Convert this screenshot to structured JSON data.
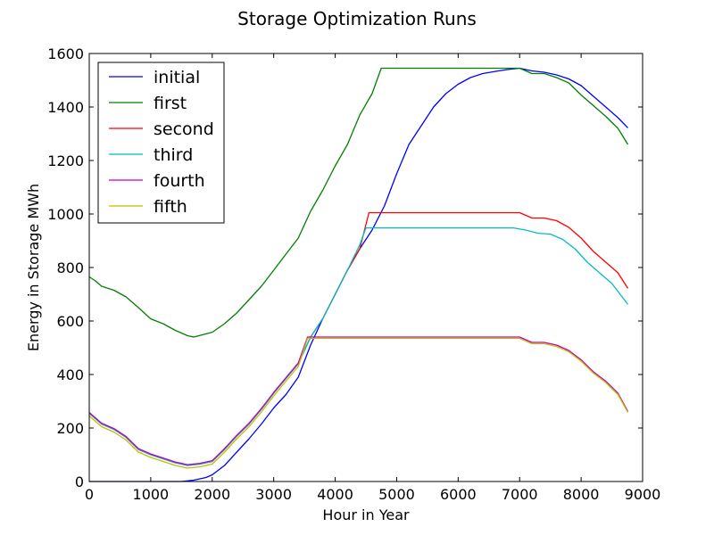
{
  "chart_data": {
    "type": "line",
    "title": "Storage Optimization Runs",
    "xlabel": "Hour in Year",
    "ylabel": "Energy in Storage MWh",
    "xlim": [
      0,
      9000
    ],
    "ylim": [
      0,
      1600
    ],
    "xticks": [
      0,
      1000,
      2000,
      3000,
      4000,
      5000,
      6000,
      7000,
      8000,
      9000
    ],
    "yticks": [
      0,
      200,
      400,
      600,
      800,
      1000,
      1200,
      1400,
      1600
    ],
    "grid": false,
    "legend_position": "upper-left",
    "series": [
      {
        "name": "initial",
        "color": "#0000ff",
        "points": [
          [
            0,
            0
          ],
          [
            800,
            0
          ],
          [
            1200,
            0
          ],
          [
            1500,
            0
          ],
          [
            1700,
            5
          ],
          [
            1900,
            15
          ],
          [
            2000,
            25
          ],
          [
            2200,
            60
          ],
          [
            2400,
            110
          ],
          [
            2600,
            160
          ],
          [
            2800,
            215
          ],
          [
            3000,
            275
          ],
          [
            3200,
            325
          ],
          [
            3400,
            390
          ],
          [
            3600,
            510
          ],
          [
            3800,
            610
          ],
          [
            4000,
            700
          ],
          [
            4200,
            790
          ],
          [
            4400,
            870
          ],
          [
            4600,
            940
          ],
          [
            4800,
            1030
          ],
          [
            5000,
            1150
          ],
          [
            5200,
            1260
          ],
          [
            5400,
            1330
          ],
          [
            5600,
            1400
          ],
          [
            5800,
            1450
          ],
          [
            6000,
            1485
          ],
          [
            6200,
            1510
          ],
          [
            6400,
            1525
          ],
          [
            6600,
            1533
          ],
          [
            6800,
            1540
          ],
          [
            7000,
            1545
          ],
          [
            7200,
            1535
          ],
          [
            7400,
            1530
          ],
          [
            7600,
            1520
          ],
          [
            7800,
            1505
          ],
          [
            8000,
            1480
          ],
          [
            8200,
            1440
          ],
          [
            8400,
            1400
          ],
          [
            8600,
            1360
          ],
          [
            8760,
            1322
          ]
        ]
      },
      {
        "name": "first",
        "color": "#008000",
        "points": [
          [
            0,
            765
          ],
          [
            100,
            750
          ],
          [
            200,
            730
          ],
          [
            400,
            715
          ],
          [
            600,
            690
          ],
          [
            800,
            650
          ],
          [
            1000,
            608
          ],
          [
            1200,
            590
          ],
          [
            1400,
            565
          ],
          [
            1600,
            545
          ],
          [
            1700,
            540
          ],
          [
            1900,
            552
          ],
          [
            2000,
            558
          ],
          [
            2200,
            590
          ],
          [
            2400,
            630
          ],
          [
            2600,
            680
          ],
          [
            2800,
            730
          ],
          [
            3000,
            790
          ],
          [
            3200,
            850
          ],
          [
            3400,
            910
          ],
          [
            3600,
            1010
          ],
          [
            3800,
            1090
          ],
          [
            4000,
            1180
          ],
          [
            4200,
            1260
          ],
          [
            4400,
            1370
          ],
          [
            4600,
            1450
          ],
          [
            4750,
            1545
          ],
          [
            5000,
            1545
          ],
          [
            6000,
            1545
          ],
          [
            7000,
            1545
          ],
          [
            7200,
            1525
          ],
          [
            7400,
            1525
          ],
          [
            7600,
            1510
          ],
          [
            7800,
            1490
          ],
          [
            8000,
            1445
          ],
          [
            8200,
            1405
          ],
          [
            8400,
            1365
          ],
          [
            8600,
            1320
          ],
          [
            8760,
            1260
          ]
        ]
      },
      {
        "name": "second",
        "color": "#ff0000",
        "points": [
          [
            0,
            255
          ],
          [
            200,
            215
          ],
          [
            400,
            195
          ],
          [
            600,
            165
          ],
          [
            800,
            120
          ],
          [
            1000,
            100
          ],
          [
            1200,
            85
          ],
          [
            1400,
            70
          ],
          [
            1600,
            60
          ],
          [
            1800,
            65
          ],
          [
            2000,
            75
          ],
          [
            2200,
            120
          ],
          [
            2400,
            170
          ],
          [
            2600,
            215
          ],
          [
            2800,
            270
          ],
          [
            3000,
            330
          ],
          [
            3200,
            385
          ],
          [
            3400,
            440
          ],
          [
            3600,
            540
          ],
          [
            3800,
            610
          ],
          [
            4000,
            700
          ],
          [
            4200,
            790
          ],
          [
            4400,
            870
          ],
          [
            4550,
            1005
          ],
          [
            5000,
            1005
          ],
          [
            6000,
            1005
          ],
          [
            7000,
            1005
          ],
          [
            7200,
            985
          ],
          [
            7400,
            985
          ],
          [
            7600,
            975
          ],
          [
            7800,
            950
          ],
          [
            8000,
            910
          ],
          [
            8200,
            860
          ],
          [
            8400,
            820
          ],
          [
            8600,
            780
          ],
          [
            8760,
            722
          ]
        ]
      },
      {
        "name": "third",
        "color": "#00bfbf",
        "points": [
          [
            0,
            255
          ],
          [
            200,
            215
          ],
          [
            400,
            195
          ],
          [
            600,
            165
          ],
          [
            800,
            120
          ],
          [
            1000,
            100
          ],
          [
            1200,
            85
          ],
          [
            1400,
            70
          ],
          [
            1600,
            60
          ],
          [
            1800,
            65
          ],
          [
            2000,
            75
          ],
          [
            2200,
            120
          ],
          [
            2400,
            170
          ],
          [
            2600,
            215
          ],
          [
            2800,
            270
          ],
          [
            3000,
            330
          ],
          [
            3200,
            385
          ],
          [
            3400,
            440
          ],
          [
            3600,
            540
          ],
          [
            3800,
            610
          ],
          [
            4000,
            700
          ],
          [
            4200,
            790
          ],
          [
            4400,
            885
          ],
          [
            4500,
            948
          ],
          [
            5000,
            948
          ],
          [
            6000,
            948
          ],
          [
            6900,
            948
          ],
          [
            7100,
            940
          ],
          [
            7300,
            928
          ],
          [
            7500,
            925
          ],
          [
            7700,
            905
          ],
          [
            7900,
            870
          ],
          [
            8100,
            820
          ],
          [
            8300,
            780
          ],
          [
            8500,
            740
          ],
          [
            8760,
            662
          ]
        ]
      },
      {
        "name": "fourth",
        "color": "#bf00bf",
        "points": [
          [
            0,
            258
          ],
          [
            200,
            218
          ],
          [
            400,
            198
          ],
          [
            600,
            168
          ],
          [
            800,
            123
          ],
          [
            1000,
            103
          ],
          [
            1200,
            88
          ],
          [
            1400,
            73
          ],
          [
            1600,
            63
          ],
          [
            1800,
            68
          ],
          [
            2000,
            78
          ],
          [
            2200,
            123
          ],
          [
            2400,
            173
          ],
          [
            2600,
            218
          ],
          [
            2800,
            273
          ],
          [
            3000,
            333
          ],
          [
            3200,
            388
          ],
          [
            3400,
            443
          ],
          [
            3550,
            540
          ],
          [
            5000,
            540
          ],
          [
            6000,
            540
          ],
          [
            7000,
            540
          ],
          [
            7200,
            520
          ],
          [
            7400,
            520
          ],
          [
            7600,
            510
          ],
          [
            7800,
            490
          ],
          [
            8000,
            455
          ],
          [
            8200,
            410
          ],
          [
            8400,
            375
          ],
          [
            8600,
            330
          ],
          [
            8760,
            262
          ]
        ]
      },
      {
        "name": "fifth",
        "color": "#bfbf00",
        "points": [
          [
            0,
            245
          ],
          [
            200,
            205
          ],
          [
            400,
            185
          ],
          [
            600,
            155
          ],
          [
            800,
            110
          ],
          [
            1000,
            90
          ],
          [
            1200,
            75
          ],
          [
            1400,
            60
          ],
          [
            1600,
            50
          ],
          [
            1800,
            55
          ],
          [
            2000,
            65
          ],
          [
            2200,
            110
          ],
          [
            2400,
            160
          ],
          [
            2600,
            205
          ],
          [
            2800,
            260
          ],
          [
            3000,
            320
          ],
          [
            3200,
            375
          ],
          [
            3400,
            430
          ],
          [
            3550,
            535
          ],
          [
            5000,
            535
          ],
          [
            6000,
            535
          ],
          [
            7000,
            535
          ],
          [
            7200,
            515
          ],
          [
            7400,
            515
          ],
          [
            7600,
            505
          ],
          [
            7800,
            485
          ],
          [
            8000,
            450
          ],
          [
            8200,
            405
          ],
          [
            8400,
            370
          ],
          [
            8600,
            325
          ],
          [
            8760,
            258
          ]
        ]
      }
    ]
  }
}
